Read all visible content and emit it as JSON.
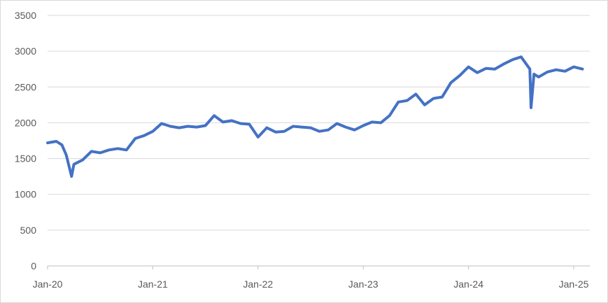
{
  "chart_data": {
    "type": "line",
    "title": "",
    "xlabel": "",
    "ylabel": "",
    "x_ticks": [
      "Jan-20",
      "Jan-21",
      "Jan-22",
      "Jan-23",
      "Jan-24",
      "Jan-25"
    ],
    "y_ticks": [
      "0",
      "500",
      "1000",
      "1500",
      "2000",
      "2500",
      "3000",
      "3500"
    ],
    "ylim": [
      0,
      3500
    ],
    "xlim": [
      "2020-01",
      "2025-02"
    ],
    "grid": true,
    "legend": "none",
    "color": "#4472C4",
    "series": [
      {
        "x": [
          "2020-01",
          "2020-02",
          "2020-02-20",
          "2020-03-05",
          "2020-03-23",
          "2020-04",
          "2020-05",
          "2020-06",
          "2020-07",
          "2020-08",
          "2020-09",
          "2020-10",
          "2020-11",
          "2020-12",
          "2021-01",
          "2021-02",
          "2021-03",
          "2021-04",
          "2021-05",
          "2021-06",
          "2021-07",
          "2021-08",
          "2021-09",
          "2021-10",
          "2021-11",
          "2021-12",
          "2022-01",
          "2022-02",
          "2022-03",
          "2022-04",
          "2022-05",
          "2022-06",
          "2022-07",
          "2022-08",
          "2022-09",
          "2022-10",
          "2022-11",
          "2022-12",
          "2023-01",
          "2023-02",
          "2023-03",
          "2023-04",
          "2023-05",
          "2023-06",
          "2023-07",
          "2023-08",
          "2023-09",
          "2023-10",
          "2023-11",
          "2023-12",
          "2024-01",
          "2024-02",
          "2024-03",
          "2024-04",
          "2024-05",
          "2024-06",
          "2024-07",
          "2024-08-01",
          "2024-08-05",
          "2024-08-15",
          "2024-09",
          "2024-10",
          "2024-11",
          "2024-12",
          "2025-01",
          "2025-02"
        ],
        "values": [
          1720,
          1740,
          1690,
          1550,
          1250,
          1420,
          1480,
          1600,
          1580,
          1620,
          1640,
          1620,
          1780,
          1820,
          1880,
          1990,
          1950,
          1930,
          1950,
          1940,
          1960,
          2100,
          2010,
          2030,
          1990,
          1980,
          1800,
          1930,
          1870,
          1880,
          1950,
          1940,
          1930,
          1880,
          1900,
          1990,
          1940,
          1900,
          1960,
          2010,
          2000,
          2100,
          2290,
          2310,
          2400,
          2250,
          2340,
          2360,
          2560,
          2660,
          2780,
          2700,
          2760,
          2750,
          2820,
          2880,
          2920,
          2750,
          2210,
          2680,
          2640,
          2710,
          2740,
          2720,
          2780,
          2750
        ]
      }
    ]
  }
}
